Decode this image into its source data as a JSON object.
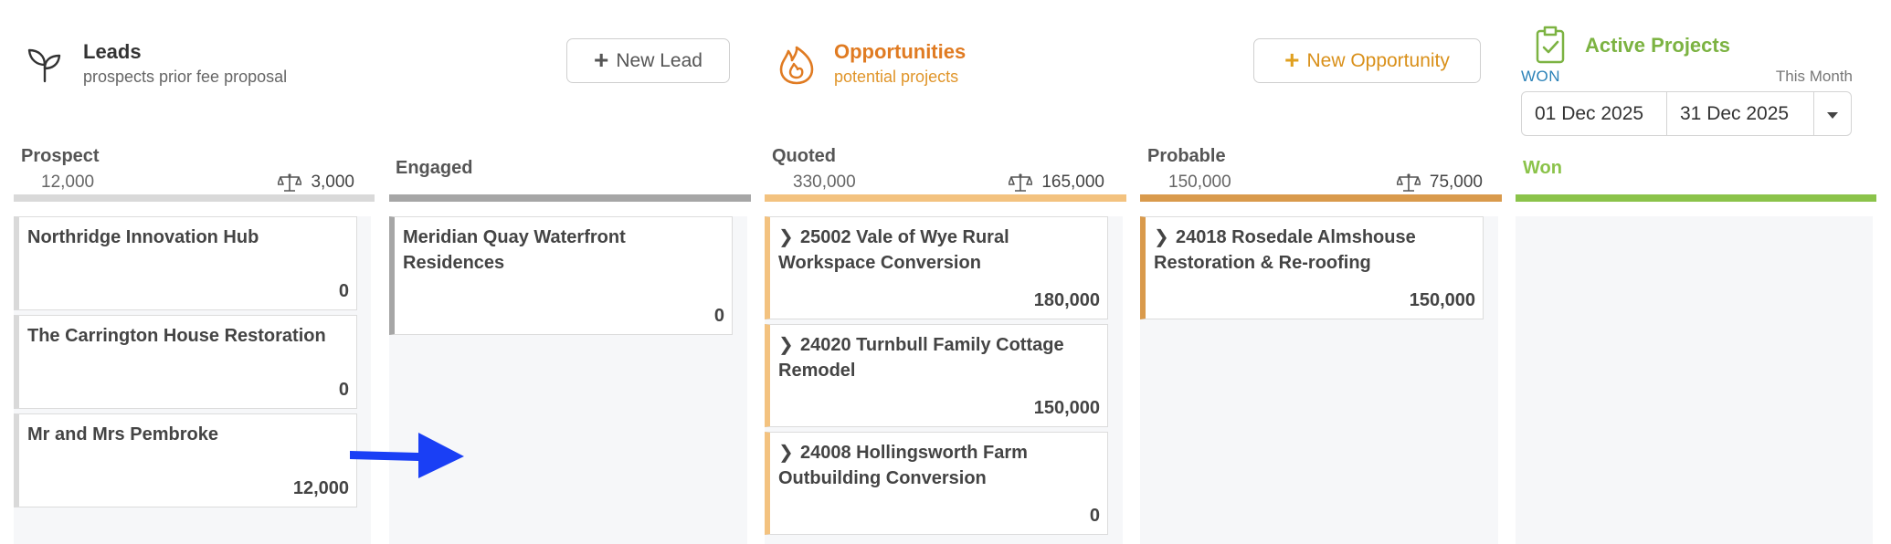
{
  "header": {
    "leads": {
      "title": "Leads",
      "subtitle": "prospects prior fee proposal",
      "icon": "sprout-icon"
    },
    "new_lead_label": "New Lead",
    "opportunities": {
      "title": "Opportunities",
      "subtitle": "potential projects",
      "icon": "flame-icon"
    },
    "new_opportunity_label": "New Opportunity",
    "active": {
      "title": "Active Projects",
      "icon": "clipboard-check-icon"
    },
    "won_label": "WON",
    "period_label": "This Month",
    "date_from": "01 Dec 2025",
    "date_to": "31 Dec 2025"
  },
  "colors": {
    "leads": "#333333",
    "opportunities": "#e07b22",
    "active": "#7cb342",
    "prospect_bar": "#d9d9d9",
    "engaged_bar": "#a6a6a6",
    "quoted_bar": "#f3c27f",
    "probable_bar": "#d99a4c",
    "won_bar": "#8bc34a",
    "arrow": "#1a3ff5"
  },
  "columns": {
    "prospect": {
      "name": "Prospect",
      "count": "12,000",
      "weighted": "3,000",
      "cards": [
        {
          "title": "Northridge Innovation Hub",
          "value": "0"
        },
        {
          "title": "The Carrington House Restoration",
          "value": "0"
        },
        {
          "title": "Mr and Mrs Pembroke",
          "value": "12,000"
        }
      ]
    },
    "engaged": {
      "name": "Engaged",
      "cards": [
        {
          "title": "Meridian Quay Waterfront Residences",
          "value": "0"
        }
      ]
    },
    "quoted": {
      "name": "Quoted",
      "count": "330,000",
      "weighted": "165,000",
      "cards": [
        {
          "title": "25002 Vale of Wye Rural Workspace Conversion",
          "value": "180,000"
        },
        {
          "title": "24020 Turnbull Family Cottage Remodel",
          "value": "150,000"
        },
        {
          "title": "24008 Hollingsworth Farm Outbuilding Conversion",
          "value": "0"
        }
      ]
    },
    "probable": {
      "name": "Probable",
      "count": "150,000",
      "weighted": "75,000",
      "cards": [
        {
          "title": "24018 Rosedale Almshouse Restoration & Re-roofing",
          "value": "150,000"
        }
      ]
    },
    "won": {
      "name": "Won",
      "cards": []
    }
  }
}
